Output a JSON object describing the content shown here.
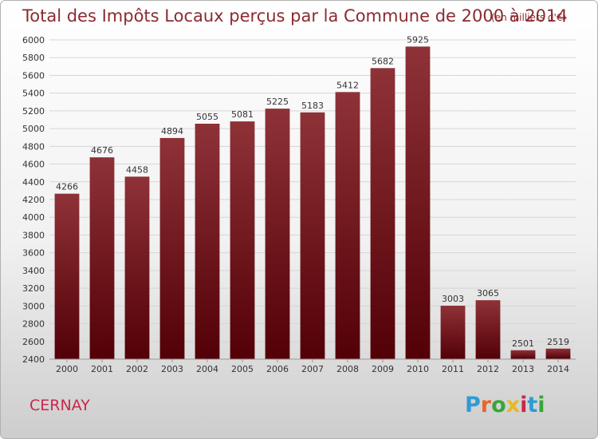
{
  "chart_data": {
    "type": "bar",
    "title": "Total des Impôts Locaux perçus par la Commune de 2000 à 2014",
    "title_unit": "(en milliers d'€)",
    "categories": [
      "2000",
      "2001",
      "2002",
      "2003",
      "2004",
      "2005",
      "2006",
      "2007",
      "2008",
      "2009",
      "2010",
      "2011",
      "2012",
      "2013",
      "2014"
    ],
    "values": [
      4266,
      4676,
      4458,
      4894,
      5055,
      5081,
      5225,
      5183,
      5412,
      5682,
      5925,
      3003,
      3065,
      2501,
      2519
    ],
    "ylim": [
      2400,
      6000
    ],
    "ytick_step": 200,
    "grid": true,
    "bar_color": "#7a1a20"
  },
  "commune": "CERNAY",
  "logo": {
    "text": "Proxiti",
    "letter_colors": [
      "#2e9bd6",
      "#e8662a",
      "#3aa53a",
      "#e8b824",
      "#c8284a",
      "#2e9bd6",
      "#3aa53a"
    ]
  }
}
